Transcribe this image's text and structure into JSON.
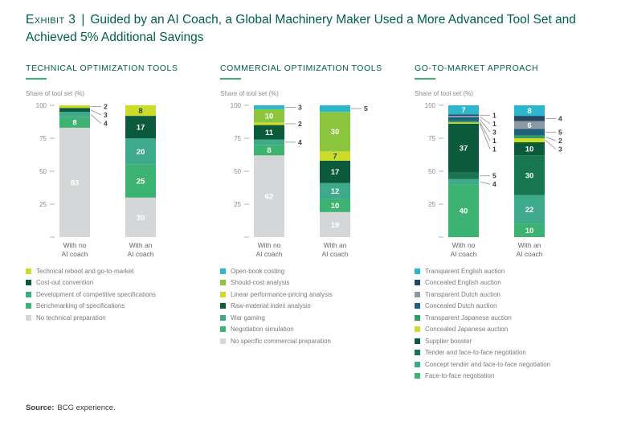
{
  "title": {
    "exhibit_label": "Exhibit 3",
    "separator": "|",
    "text": "Guided by an AI Coach, a Global Machinery Maker Used a More Advanced Tool Set and Achieved 5% Additional Savings"
  },
  "source": {
    "label": "Source:",
    "text": "BCG experience."
  },
  "colors": {
    "title": "#005F4B",
    "panel_heading": "#00614D",
    "accent_rule": "#3CB371",
    "axis_text": "#8C8C8C",
    "category_text": "#666666",
    "legend_text": "#7A7A7A",
    "callout_text": "#3A3A3A",
    "background": "#FFFFFF"
  },
  "chart_data": [
    {
      "type": "bar",
      "stacked": true,
      "title": "TECHNICAL OPTIMIZATION TOOLS",
      "ylabel": "Share of tool set (%)",
      "ylim": [
        0,
        100
      ],
      "yticks": [
        100,
        75,
        50,
        25
      ],
      "grid": false,
      "legend_position": "bottom",
      "categories": [
        "With no AI coach",
        "With an AI coach"
      ],
      "series": [
        {
          "name": "Technical reboot and go-to-market",
          "color": "#CDDB2A",
          "dark_label": true,
          "values": [
            2,
            8
          ]
        },
        {
          "name": "Cost-out convention",
          "color": "#0B5A3B",
          "values": [
            3,
            17
          ]
        },
        {
          "name": "Development of competitive specifications",
          "color": "#3FA98C",
          "values": [
            4,
            20
          ]
        },
        {
          "name": "Benchmarking of specifications",
          "color": "#3CB371",
          "values": [
            8,
            25
          ]
        },
        {
          "name": "No technical preparation",
          "color": "#D4D6D7",
          "values": [
            83,
            30
          ]
        }
      ]
    },
    {
      "type": "bar",
      "stacked": true,
      "title": "COMMERCIAL OPTIMIZATION TOOLS",
      "ylabel": "Share of tool set (%)",
      "ylim": [
        0,
        100
      ],
      "yticks": [
        100,
        75,
        50,
        25
      ],
      "grid": false,
      "legend_position": "bottom",
      "categories": [
        "With no AI coach",
        "With an AI coach"
      ],
      "series": [
        {
          "name": "Open-book costing",
          "color": "#2EB6CC",
          "values": [
            3,
            5
          ]
        },
        {
          "name": "Should-cost analysis",
          "color": "#8CC63F",
          "values": [
            10,
            30
          ]
        },
        {
          "name": "Linear performance-pricing analysis",
          "color": "#CDDB2A",
          "dark_label": true,
          "values": [
            2,
            7
          ]
        },
        {
          "name": "Raw-material index analysis",
          "color": "#0B5A3B",
          "values": [
            11,
            17
          ]
        },
        {
          "name": "War gaming",
          "color": "#3FA98C",
          "values": [
            4,
            12
          ]
        },
        {
          "name": "Negotiation simulation",
          "color": "#3CB371",
          "values": [
            8,
            10
          ]
        },
        {
          "name": "No specific commercial preparation",
          "color": "#D4D6D7",
          "values": [
            62,
            19
          ]
        }
      ]
    },
    {
      "type": "bar",
      "stacked": true,
      "title": "GO-TO-MARKET APPROACH",
      "ylabel": "Share of tool set (%)",
      "ylim": [
        0,
        100
      ],
      "yticks": [
        100,
        75,
        50,
        25
      ],
      "grid": false,
      "legend_position": "bottom",
      "categories": [
        "With no AI coach",
        "With an AI coach"
      ],
      "series": [
        {
          "name": "Transparent English auction",
          "color": "#2EB6CC",
          "values": [
            7,
            8
          ]
        },
        {
          "name": "Concealed English auction",
          "color": "#264763",
          "values": [
            1,
            4
          ]
        },
        {
          "name": "Transparent Dutch auction",
          "color": "#8C99A3",
          "values": [
            1,
            6
          ]
        },
        {
          "name": "Concealed Dutch auction",
          "color": "#20607A",
          "values": [
            3,
            5
          ]
        },
        {
          "name": "Transparent Japanese auction",
          "color": "#2F9E5F",
          "values": [
            1,
            2
          ]
        },
        {
          "name": "Concealed Japanese auction",
          "color": "#CDDB2A",
          "dark_label": true,
          "values": [
            1,
            3
          ]
        },
        {
          "name": "Supplier booster",
          "color": "#0B5A3B",
          "values": [
            37,
            10
          ]
        },
        {
          "name": "Tender and face-to-face negotiation",
          "color": "#177550",
          "values": [
            5,
            30
          ]
        },
        {
          "name": "Concept tender and face-to-face negotiation",
          "color": "#3FA98C",
          "values": [
            4,
            22
          ]
        },
        {
          "name": "Face-to-face negotiation",
          "color": "#3CB371",
          "values": [
            40,
            10
          ]
        }
      ]
    }
  ]
}
